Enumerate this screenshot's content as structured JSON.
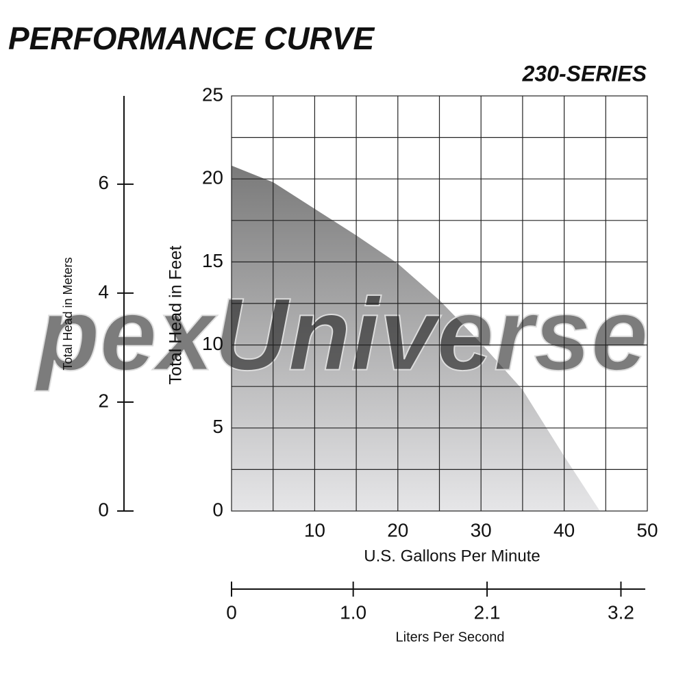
{
  "chart_data": {
    "type": "area",
    "title": "PERFORMANCE CURVE",
    "subtitle": "230-SERIES",
    "watermark": "pexUniverse",
    "x": [
      0,
      5,
      10,
      15,
      20,
      25,
      30,
      35,
      40,
      44.3
    ],
    "values": [
      20.8,
      19.8,
      18.2,
      16.6,
      14.9,
      12.7,
      10.1,
      7.3,
      3.3,
      0
    ],
    "xlim": [
      0,
      50
    ],
    "xticks": [
      10,
      20,
      30,
      40,
      50
    ],
    "xgrid": [
      5,
      10,
      15,
      20,
      25,
      30,
      35,
      40,
      45
    ],
    "ylim": [
      0,
      25
    ],
    "yticks": [
      0,
      5,
      10,
      15,
      20,
      25
    ],
    "ygrid": [
      2.5,
      5,
      7.5,
      10,
      12.5,
      15,
      17.5,
      20,
      22.5
    ],
    "xlabel": "U.S. Gallons Per Minute",
    "ylabel": "Total Head in Feet",
    "y2lim": [
      0,
      7.62
    ],
    "y2ticks": [
      0,
      2,
      4,
      6
    ],
    "y2label": "Total Head in Meters",
    "x2lim": [
      0,
      3.4
    ],
    "x2ticks": [
      0,
      {
        "value": 1,
        "label": "1.0"
      },
      2.1,
      3.2
    ],
    "x2label": "Liters Per Second",
    "fill_top": "#7a7a7a",
    "fill_bottom": "#e6e6e8"
  }
}
